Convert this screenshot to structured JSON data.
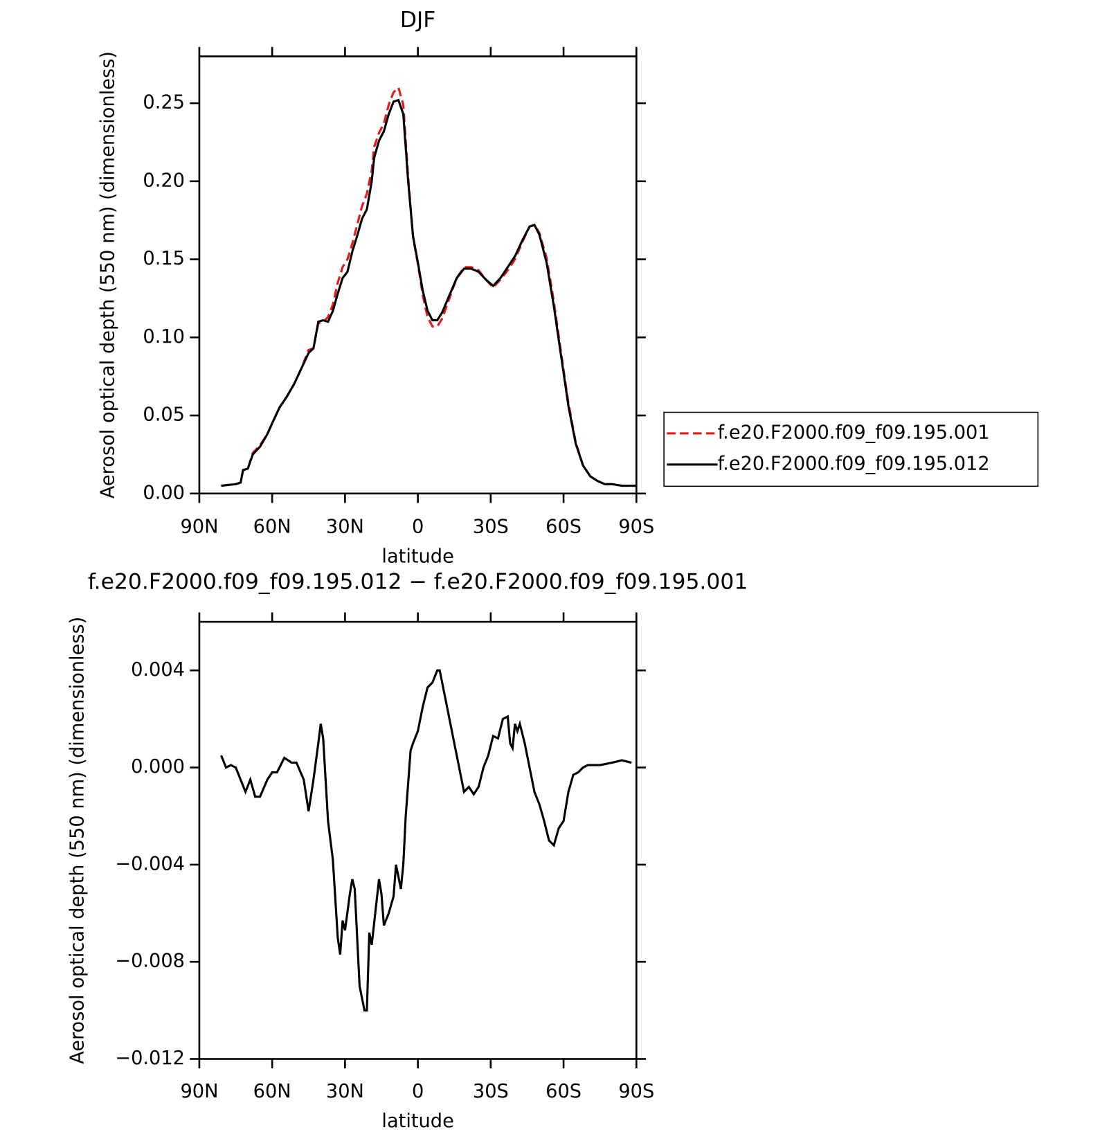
{
  "chart_data": [
    {
      "type": "line",
      "title": "DJF",
      "xlabel": "latitude",
      "ylabel": "Aerosol optical depth (550 nm) (dimensionless)",
      "x": [
        81,
        75,
        73,
        72,
        70,
        68,
        65,
        62,
        60,
        57,
        54,
        51,
        48,
        45,
        43,
        41,
        39,
        37,
        35,
        33,
        31,
        29,
        27,
        25,
        23,
        21,
        19,
        18,
        16,
        14,
        12,
        10,
        8,
        6,
        4,
        2,
        0,
        -2,
        -4,
        -6,
        -8,
        -10,
        -13,
        -16,
        -19,
        -22,
        -25,
        -28,
        -31,
        -34,
        -37,
        -40,
        -43,
        -46,
        -48,
        -50,
        -53,
        -56,
        -59,
        -62,
        -65,
        -68,
        -71,
        -74,
        -77,
        -80,
        -84,
        -88,
        -90
      ],
      "series": [
        {
          "name": "f.e20.F2000.f09_f09.195.001",
          "color": "#e41a1c",
          "linestyle": "dashed",
          "values": [
            0.005,
            0.006,
            0.007,
            0.015,
            0.016,
            0.026,
            0.031,
            0.038,
            0.045,
            0.055,
            0.062,
            0.07,
            0.08,
            0.092,
            0.093,
            0.109,
            0.11,
            0.113,
            0.121,
            0.135,
            0.145,
            0.15,
            0.16,
            0.172,
            0.184,
            0.192,
            0.207,
            0.222,
            0.231,
            0.237,
            0.249,
            0.257,
            0.26,
            0.249,
            0.203,
            0.164,
            0.147,
            0.127,
            0.113,
            0.107,
            0.107,
            0.112,
            0.125,
            0.138,
            0.145,
            0.145,
            0.143,
            0.137,
            0.132,
            0.137,
            0.143,
            0.15,
            0.161,
            0.171,
            0.172,
            0.167,
            0.151,
            0.123,
            0.09,
            0.058,
            0.033,
            0.018,
            0.011,
            0.008,
            0.006,
            0.006,
            0.005,
            0.005,
            0.005
          ]
        },
        {
          "name": "f.e20.F2000.f09_f09.195.012",
          "color": "#000000",
          "linestyle": "solid",
          "values": [
            0.005,
            0.006,
            0.007,
            0.015,
            0.016,
            0.025,
            0.03,
            0.038,
            0.045,
            0.055,
            0.062,
            0.07,
            0.08,
            0.09,
            0.093,
            0.11,
            0.111,
            0.11,
            0.117,
            0.128,
            0.138,
            0.142,
            0.155,
            0.165,
            0.176,
            0.182,
            0.2,
            0.215,
            0.226,
            0.232,
            0.243,
            0.251,
            0.252,
            0.243,
            0.2,
            0.165,
            0.148,
            0.13,
            0.117,
            0.111,
            0.111,
            0.116,
            0.127,
            0.138,
            0.144,
            0.144,
            0.142,
            0.137,
            0.133,
            0.138,
            0.145,
            0.152,
            0.162,
            0.171,
            0.172,
            0.166,
            0.148,
            0.12,
            0.088,
            0.056,
            0.032,
            0.018,
            0.011,
            0.008,
            0.006,
            0.006,
            0.005,
            0.005,
            0.005
          ]
        }
      ],
      "xlim": [
        90,
        -90
      ],
      "xticks": [
        {
          "value": 90,
          "label": "90N"
        },
        {
          "value": 60,
          "label": "60N"
        },
        {
          "value": 30,
          "label": "30N"
        },
        0,
        {
          "value": -30,
          "label": "30S"
        },
        {
          "value": -60,
          "label": "60S"
        },
        {
          "value": -90,
          "label": "90S"
        }
      ],
      "ylim": [
        0,
        0.28
      ],
      "yticks": [
        {
          "value": 0,
          "label": "0.00"
        },
        {
          "value": 0.05,
          "label": "0.05"
        },
        {
          "value": 0.1,
          "label": "0.10"
        },
        {
          "value": 0.15,
          "label": "0.15"
        },
        {
          "value": 0.2,
          "label": "0.20"
        },
        {
          "value": 0.25,
          "label": "0.25"
        }
      ],
      "legend": "right"
    },
    {
      "type": "line",
      "title": "f.e20.F2000.f09_f09.195.012 − f.e20.F2000.f09_f09.195.001",
      "xlabel": "latitude",
      "ylabel": "Aerosol optical depth (550 nm) (dimensionless)",
      "x": [
        81,
        79,
        77,
        75,
        73,
        71,
        69,
        67,
        65,
        62,
        60,
        58,
        55,
        52,
        50,
        47,
        45,
        43,
        41,
        40,
        39,
        37,
        35,
        33,
        32,
        31,
        30,
        28,
        27,
        26,
        24,
        22,
        21,
        20,
        19,
        17,
        16,
        15,
        14,
        12,
        10,
        9,
        8,
        7,
        6,
        5,
        3,
        2,
        0,
        -2,
        -4,
        -6,
        -8,
        -9,
        -11,
        -13,
        -15,
        -17,
        -19,
        -21,
        -23,
        -25,
        -27,
        -29,
        -31,
        -33,
        -35,
        -37,
        -38,
        -39,
        -40,
        -41,
        -42,
        -44,
        -46,
        -48,
        -50,
        -52,
        -54,
        -56,
        -58,
        -60,
        -62,
        -64,
        -66,
        -68,
        -70,
        -75,
        -80,
        -84,
        -88
      ],
      "series": [
        {
          "color": "#000000",
          "linestyle": "solid",
          "values": [
            0.0005,
            0.0,
            0.0001,
            0.0,
            -0.0005,
            -0.001,
            -0.0005,
            -0.0012,
            -0.0012,
            -0.0005,
            -0.0002,
            -0.0002,
            0.0004,
            0.0002,
            0.0002,
            -0.0005,
            -0.0018,
            -0.0005,
            0.001,
            0.0018,
            0.0012,
            -0.0022,
            -0.0038,
            -0.007,
            -0.0077,
            -0.0063,
            -0.0067,
            -0.0052,
            -0.0046,
            -0.005,
            -0.009,
            -0.01,
            -0.01,
            -0.0068,
            -0.0073,
            -0.0055,
            -0.0046,
            -0.0052,
            -0.0065,
            -0.006,
            -0.0053,
            -0.004,
            -0.0045,
            -0.005,
            -0.004,
            -0.002,
            0.0007,
            0.001,
            0.0015,
            0.0025,
            0.0033,
            0.0035,
            0.004,
            0.004,
            0.003,
            0.002,
            0.001,
            0.0,
            -0.001,
            -0.0008,
            -0.0011,
            -0.0008,
            0.0,
            0.0005,
            0.0013,
            0.0012,
            0.002,
            0.0021,
            0.001,
            0.0008,
            0.0018,
            0.0015,
            0.0018,
            0.001,
            0.0,
            -0.001,
            -0.0015,
            -0.0022,
            -0.003,
            -0.0032,
            -0.0025,
            -0.0022,
            -0.001,
            -0.0003,
            -0.0002,
            0.0,
            0.0001,
            0.0001,
            0.0002,
            0.0003,
            0.0002
          ]
        }
      ],
      "xlim": [
        90,
        -90
      ],
      "xticks": [
        {
          "value": 90,
          "label": "90N"
        },
        {
          "value": 60,
          "label": "60N"
        },
        {
          "value": 30,
          "label": "30N"
        },
        0,
        {
          "value": -30,
          "label": "30S"
        },
        {
          "value": -60,
          "label": "60S"
        },
        {
          "value": -90,
          "label": "90S"
        }
      ],
      "ylim": [
        -0.012,
        0.006
      ],
      "yticks": [
        {
          "value": -0.012,
          "label": "−0.012"
        },
        {
          "value": -0.008,
          "label": "−0.008"
        },
        {
          "value": -0.004,
          "label": "−0.004"
        },
        {
          "value": 0,
          "label": "0.000"
        },
        0.004
      ]
    }
  ]
}
